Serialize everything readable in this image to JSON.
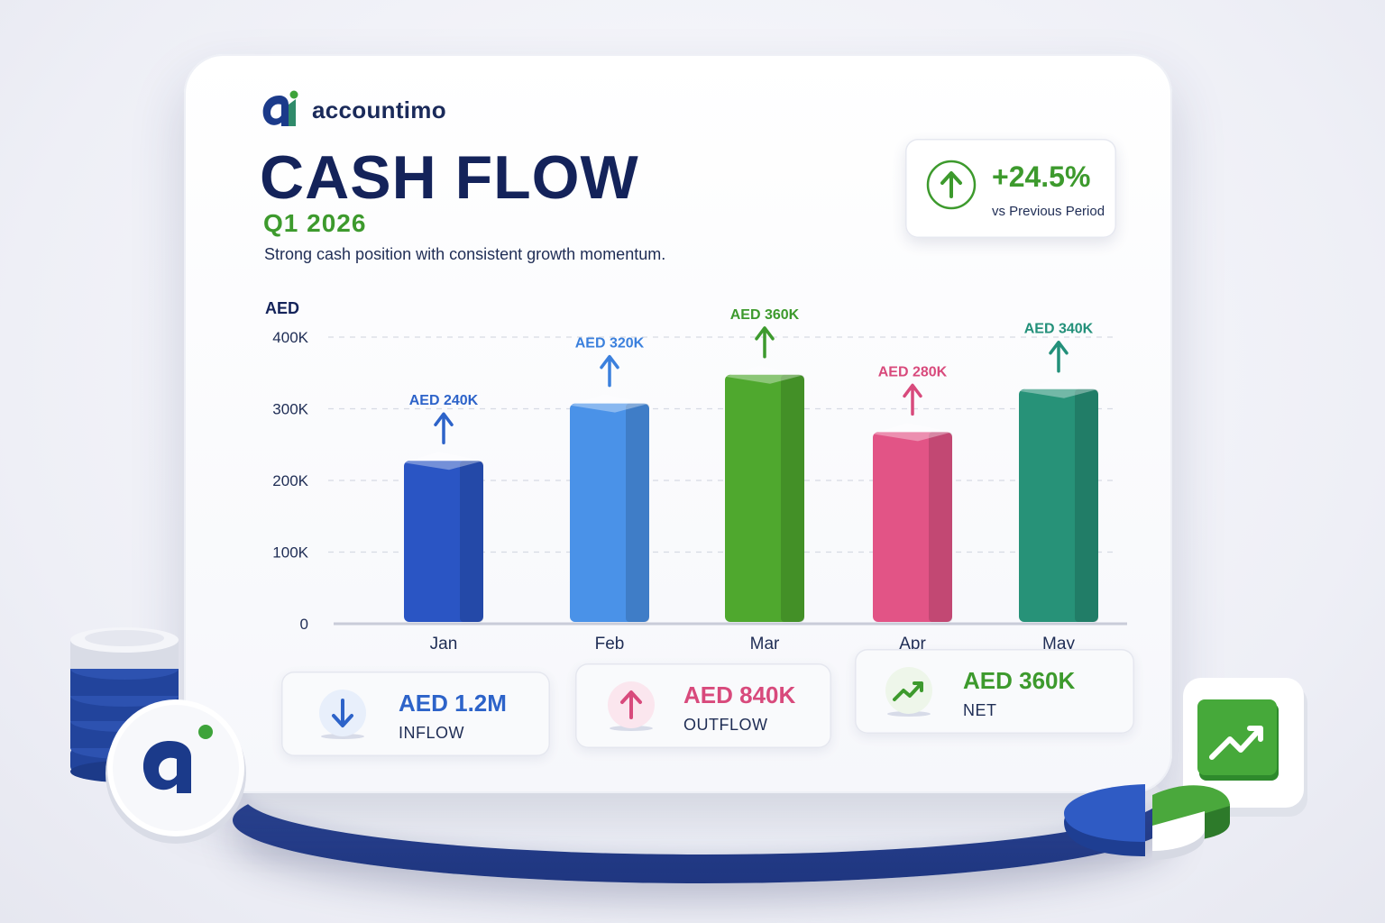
{
  "brand": {
    "name": "accountimo"
  },
  "header": {
    "title": "CASH FLOW",
    "period": "Q1 2026",
    "tagline": "Strong cash position with consistent growth momentum."
  },
  "kpi": {
    "value": "+24.5%",
    "label": "vs Previous Period",
    "icon": "arrow-up-icon",
    "color": "#3d9a2d"
  },
  "chart_data": {
    "type": "bar",
    "ylabel": "AED",
    "ylim": [
      0,
      400000
    ],
    "yticks": [
      {
        "value": 0,
        "label": "0"
      },
      {
        "value": 100000,
        "label": "100K"
      },
      {
        "value": 200000,
        "label": "200K"
      },
      {
        "value": 300000,
        "label": "300K"
      },
      {
        "value": 400000,
        "label": "400K"
      }
    ],
    "grid": true,
    "categories": [
      "Jan",
      "Feb",
      "Mar",
      "Apr",
      "May"
    ],
    "values": [
      240000,
      320000,
      360000,
      280000,
      340000
    ],
    "data_labels": [
      "AED 240K",
      "AED 320K",
      "AED 360K",
      "AED 280K",
      "AED 340K"
    ],
    "colors": [
      "#2a55c4",
      "#4a92e8",
      "#4fa82e",
      "#e25486",
      "#279278"
    ],
    "label_colors": [
      "#2d63c9",
      "#3b80dd",
      "#3d9a2d",
      "#d84a7c",
      "#23907a"
    ]
  },
  "summary": [
    {
      "value": "AED 1.2M",
      "label": "INFLOW",
      "icon": "arrow-down-icon",
      "color": "#2d63c9"
    },
    {
      "value": "AED 840K",
      "label": "OUTFLOW",
      "icon": "arrow-up-icon",
      "color": "#d84a7c"
    },
    {
      "value": "AED 360K",
      "label": "NET",
      "icon": "trend-up-icon",
      "color": "#3d9a2d"
    }
  ]
}
